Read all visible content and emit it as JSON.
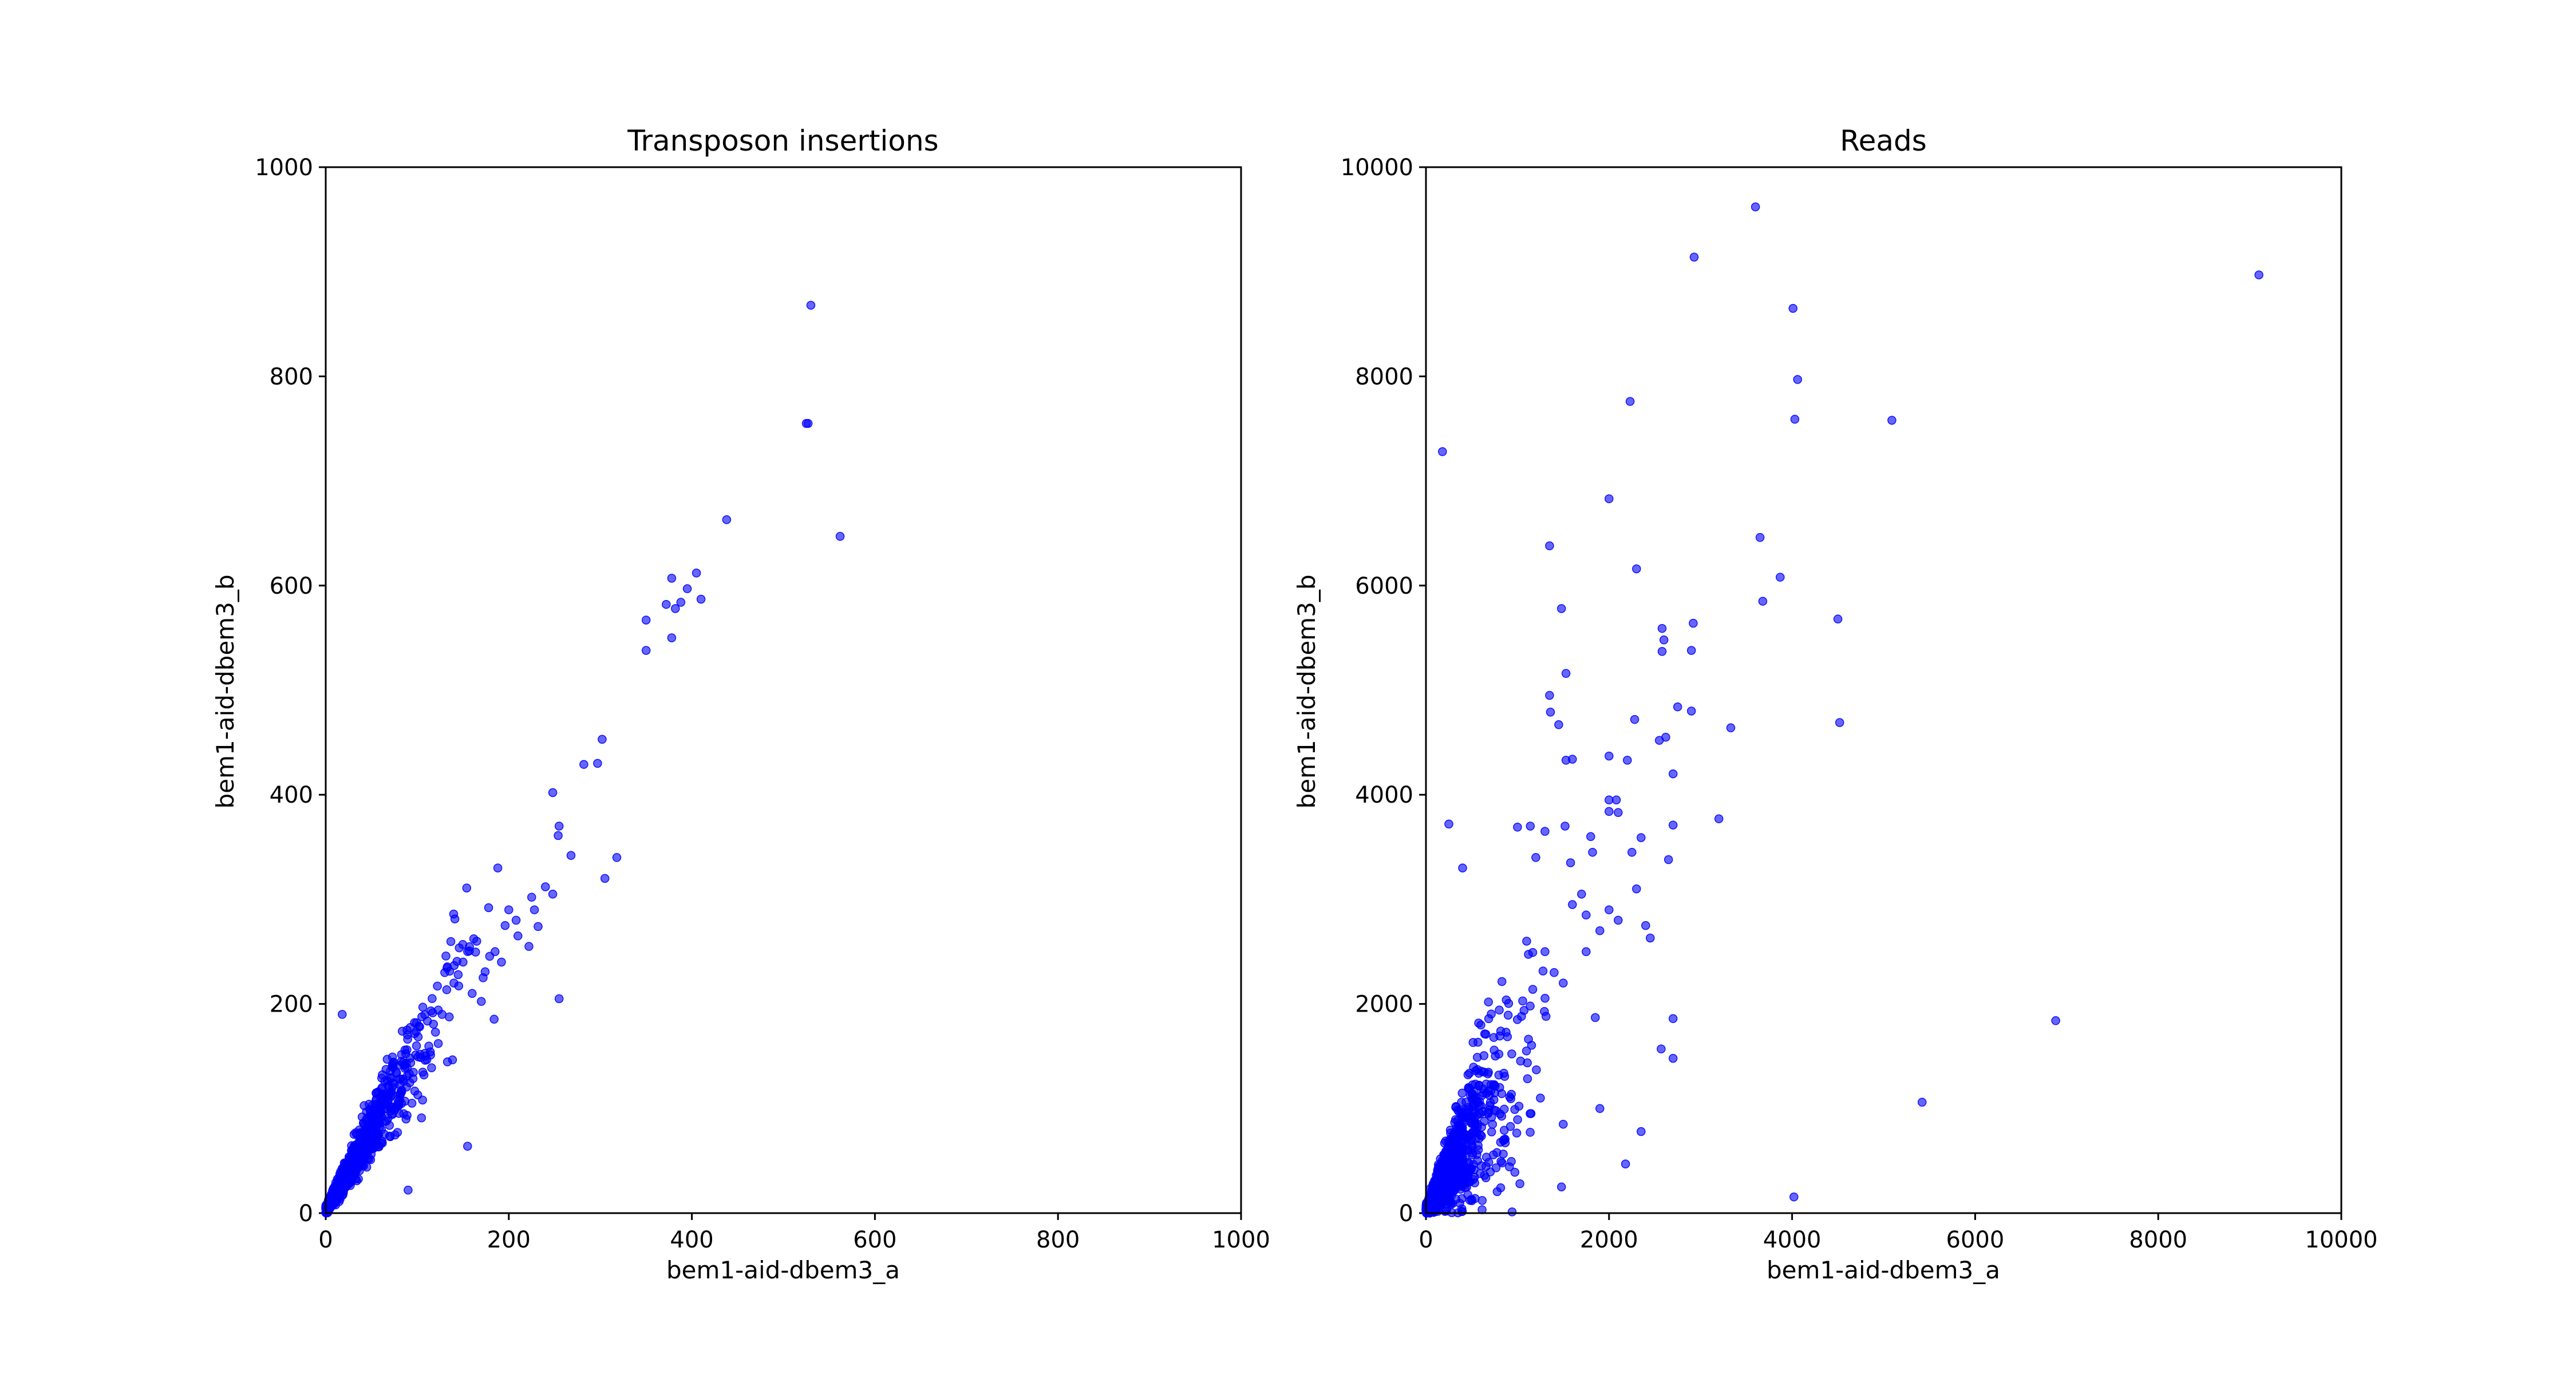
{
  "colors": {
    "marker": "#0000ff",
    "axes": "#000000",
    "background": "#ffffff"
  },
  "chart_data": [
    {
      "type": "scatter",
      "title": "Transposon insertions",
      "xlabel": "bem1-aid-dbem3_a",
      "ylabel": "bem1-aid-dbem3_b",
      "xlim": [
        0,
        1000
      ],
      "ylim": [
        0,
        1000
      ],
      "xticks": [
        "0",
        "200",
        "400",
        "600",
        "800",
        "1000"
      ],
      "yticks": [
        "0",
        "200",
        "400",
        "600",
        "800",
        "1000"
      ],
      "grid": false,
      "legend": "none",
      "marker_color": "#0000ff",
      "marker_alpha": 0.6,
      "cluster": {
        "count": 1100,
        "slope": 1.55,
        "x_mean": 35,
        "x_max": 200,
        "spread": 0.18
      },
      "points": [
        {
          "x": 530,
          "y": 868
        },
        {
          "x": 527,
          "y": 755
        },
        {
          "x": 525,
          "y": 755
        },
        {
          "x": 562,
          "y": 647
        },
        {
          "x": 438,
          "y": 663
        },
        {
          "x": 378,
          "y": 607
        },
        {
          "x": 405,
          "y": 612
        },
        {
          "x": 395,
          "y": 597
        },
        {
          "x": 410,
          "y": 587
        },
        {
          "x": 388,
          "y": 584
        },
        {
          "x": 372,
          "y": 582
        },
        {
          "x": 382,
          "y": 578
        },
        {
          "x": 350,
          "y": 567
        },
        {
          "x": 378,
          "y": 550
        },
        {
          "x": 350,
          "y": 538
        },
        {
          "x": 302,
          "y": 453
        },
        {
          "x": 297,
          "y": 430
        },
        {
          "x": 282,
          "y": 429
        },
        {
          "x": 248,
          "y": 402
        },
        {
          "x": 255,
          "y": 370
        },
        {
          "x": 254,
          "y": 361
        },
        {
          "x": 268,
          "y": 342
        },
        {
          "x": 318,
          "y": 340
        },
        {
          "x": 305,
          "y": 320
        },
        {
          "x": 188,
          "y": 330
        },
        {
          "x": 240,
          "y": 312
        },
        {
          "x": 248,
          "y": 305
        },
        {
          "x": 225,
          "y": 302
        },
        {
          "x": 228,
          "y": 290
        },
        {
          "x": 232,
          "y": 274
        },
        {
          "x": 255,
          "y": 205
        },
        {
          "x": 18,
          "y": 190
        },
        {
          "x": 155,
          "y": 64
        },
        {
          "x": 90,
          "y": 22
        },
        {
          "x": 200,
          "y": 290
        },
        {
          "x": 196,
          "y": 275
        },
        {
          "x": 178,
          "y": 292
        },
        {
          "x": 208,
          "y": 280
        },
        {
          "x": 185,
          "y": 250
        },
        {
          "x": 192,
          "y": 240
        },
        {
          "x": 165,
          "y": 260
        },
        {
          "x": 172,
          "y": 225
        },
        {
          "x": 150,
          "y": 240
        },
        {
          "x": 160,
          "y": 210
        },
        {
          "x": 140,
          "y": 220
        },
        {
          "x": 130,
          "y": 230
        },
        {
          "x": 210,
          "y": 265
        },
        {
          "x": 222,
          "y": 255
        }
      ]
    },
    {
      "type": "scatter",
      "title": "Reads",
      "xlabel": "bem1-aid-dbem3_a",
      "ylabel": "bem1-aid-dbem3_b",
      "xlim": [
        0,
        10000
      ],
      "ylim": [
        0,
        10000
      ],
      "xticks": [
        "0",
        "2000",
        "4000",
        "6000",
        "8000",
        "10000"
      ],
      "yticks": [
        "0",
        "2000",
        "4000",
        "6000",
        "8000",
        "10000"
      ],
      "grid": false,
      "legend": "none",
      "marker_color": "#0000ff",
      "marker_alpha": 0.6,
      "cluster": {
        "count": 1200,
        "slope": 1.5,
        "x_mean": 250,
        "x_max": 1800,
        "spread": 0.45
      },
      "points": [
        {
          "x": 3600,
          "y": 9620
        },
        {
          "x": 9100,
          "y": 8970
        },
        {
          "x": 2930,
          "y": 9140
        },
        {
          "x": 4010,
          "y": 8650
        },
        {
          "x": 4060,
          "y": 7970
        },
        {
          "x": 2230,
          "y": 7760
        },
        {
          "x": 4030,
          "y": 7590
        },
        {
          "x": 5090,
          "y": 7580
        },
        {
          "x": 180,
          "y": 7280
        },
        {
          "x": 2000,
          "y": 6830
        },
        {
          "x": 3650,
          "y": 6460
        },
        {
          "x": 1350,
          "y": 6380
        },
        {
          "x": 2300,
          "y": 6160
        },
        {
          "x": 3870,
          "y": 6080
        },
        {
          "x": 3680,
          "y": 5850
        },
        {
          "x": 1480,
          "y": 5780
        },
        {
          "x": 4500,
          "y": 5680
        },
        {
          "x": 2920,
          "y": 5640
        },
        {
          "x": 2580,
          "y": 5590
        },
        {
          "x": 2600,
          "y": 5480
        },
        {
          "x": 2900,
          "y": 5380
        },
        {
          "x": 2580,
          "y": 5370
        },
        {
          "x": 1530,
          "y": 5160
        },
        {
          "x": 1350,
          "y": 4950
        },
        {
          "x": 2750,
          "y": 4840
        },
        {
          "x": 2900,
          "y": 4800
        },
        {
          "x": 1360,
          "y": 4790
        },
        {
          "x": 2280,
          "y": 4720
        },
        {
          "x": 4520,
          "y": 4690
        },
        {
          "x": 1450,
          "y": 4670
        },
        {
          "x": 3330,
          "y": 4640
        },
        {
          "x": 2620,
          "y": 4550
        },
        {
          "x": 2550,
          "y": 4520
        },
        {
          "x": 2000,
          "y": 4370
        },
        {
          "x": 1530,
          "y": 4330
        },
        {
          "x": 1600,
          "y": 4340
        },
        {
          "x": 2200,
          "y": 4330
        },
        {
          "x": 2700,
          "y": 4200
        },
        {
          "x": 2000,
          "y": 3950
        },
        {
          "x": 2080,
          "y": 3950
        },
        {
          "x": 2000,
          "y": 3840
        },
        {
          "x": 2100,
          "y": 3830
        },
        {
          "x": 3200,
          "y": 3770
        },
        {
          "x": 250,
          "y": 3720
        },
        {
          "x": 2700,
          "y": 3710
        },
        {
          "x": 1000,
          "y": 3690
        },
        {
          "x": 1140,
          "y": 3700
        },
        {
          "x": 1300,
          "y": 3650
        },
        {
          "x": 1520,
          "y": 3700
        },
        {
          "x": 1800,
          "y": 3600
        },
        {
          "x": 2350,
          "y": 3590
        },
        {
          "x": 1820,
          "y": 3450
        },
        {
          "x": 2250,
          "y": 3450
        },
        {
          "x": 2650,
          "y": 3380
        },
        {
          "x": 1200,
          "y": 3400
        },
        {
          "x": 1580,
          "y": 3350
        },
        {
          "x": 400,
          "y": 3300
        },
        {
          "x": 2300,
          "y": 3100
        },
        {
          "x": 1700,
          "y": 3050
        },
        {
          "x": 2400,
          "y": 2750
        },
        {
          "x": 2450,
          "y": 2630
        },
        {
          "x": 2000,
          "y": 2900
        },
        {
          "x": 2100,
          "y": 2800
        },
        {
          "x": 1900,
          "y": 2700
        },
        {
          "x": 1750,
          "y": 2850
        },
        {
          "x": 1600,
          "y": 2950
        },
        {
          "x": 6880,
          "y": 1840
        },
        {
          "x": 5420,
          "y": 1060
        },
        {
          "x": 2700,
          "y": 1860
        },
        {
          "x": 2700,
          "y": 1480
        },
        {
          "x": 2570,
          "y": 1570
        },
        {
          "x": 4020,
          "y": 155
        },
        {
          "x": 1900,
          "y": 1000
        },
        {
          "x": 1500,
          "y": 850
        },
        {
          "x": 2350,
          "y": 780
        },
        {
          "x": 2180,
          "y": 470
        },
        {
          "x": 1480,
          "y": 250
        },
        {
          "x": 1250,
          "y": 1100
        },
        {
          "x": 1850,
          "y": 1870
        },
        {
          "x": 1750,
          "y": 2500
        },
        {
          "x": 1500,
          "y": 2200
        },
        {
          "x": 1300,
          "y": 2500
        },
        {
          "x": 1400,
          "y": 2300
        },
        {
          "x": 1100,
          "y": 2600
        }
      ]
    }
  ]
}
